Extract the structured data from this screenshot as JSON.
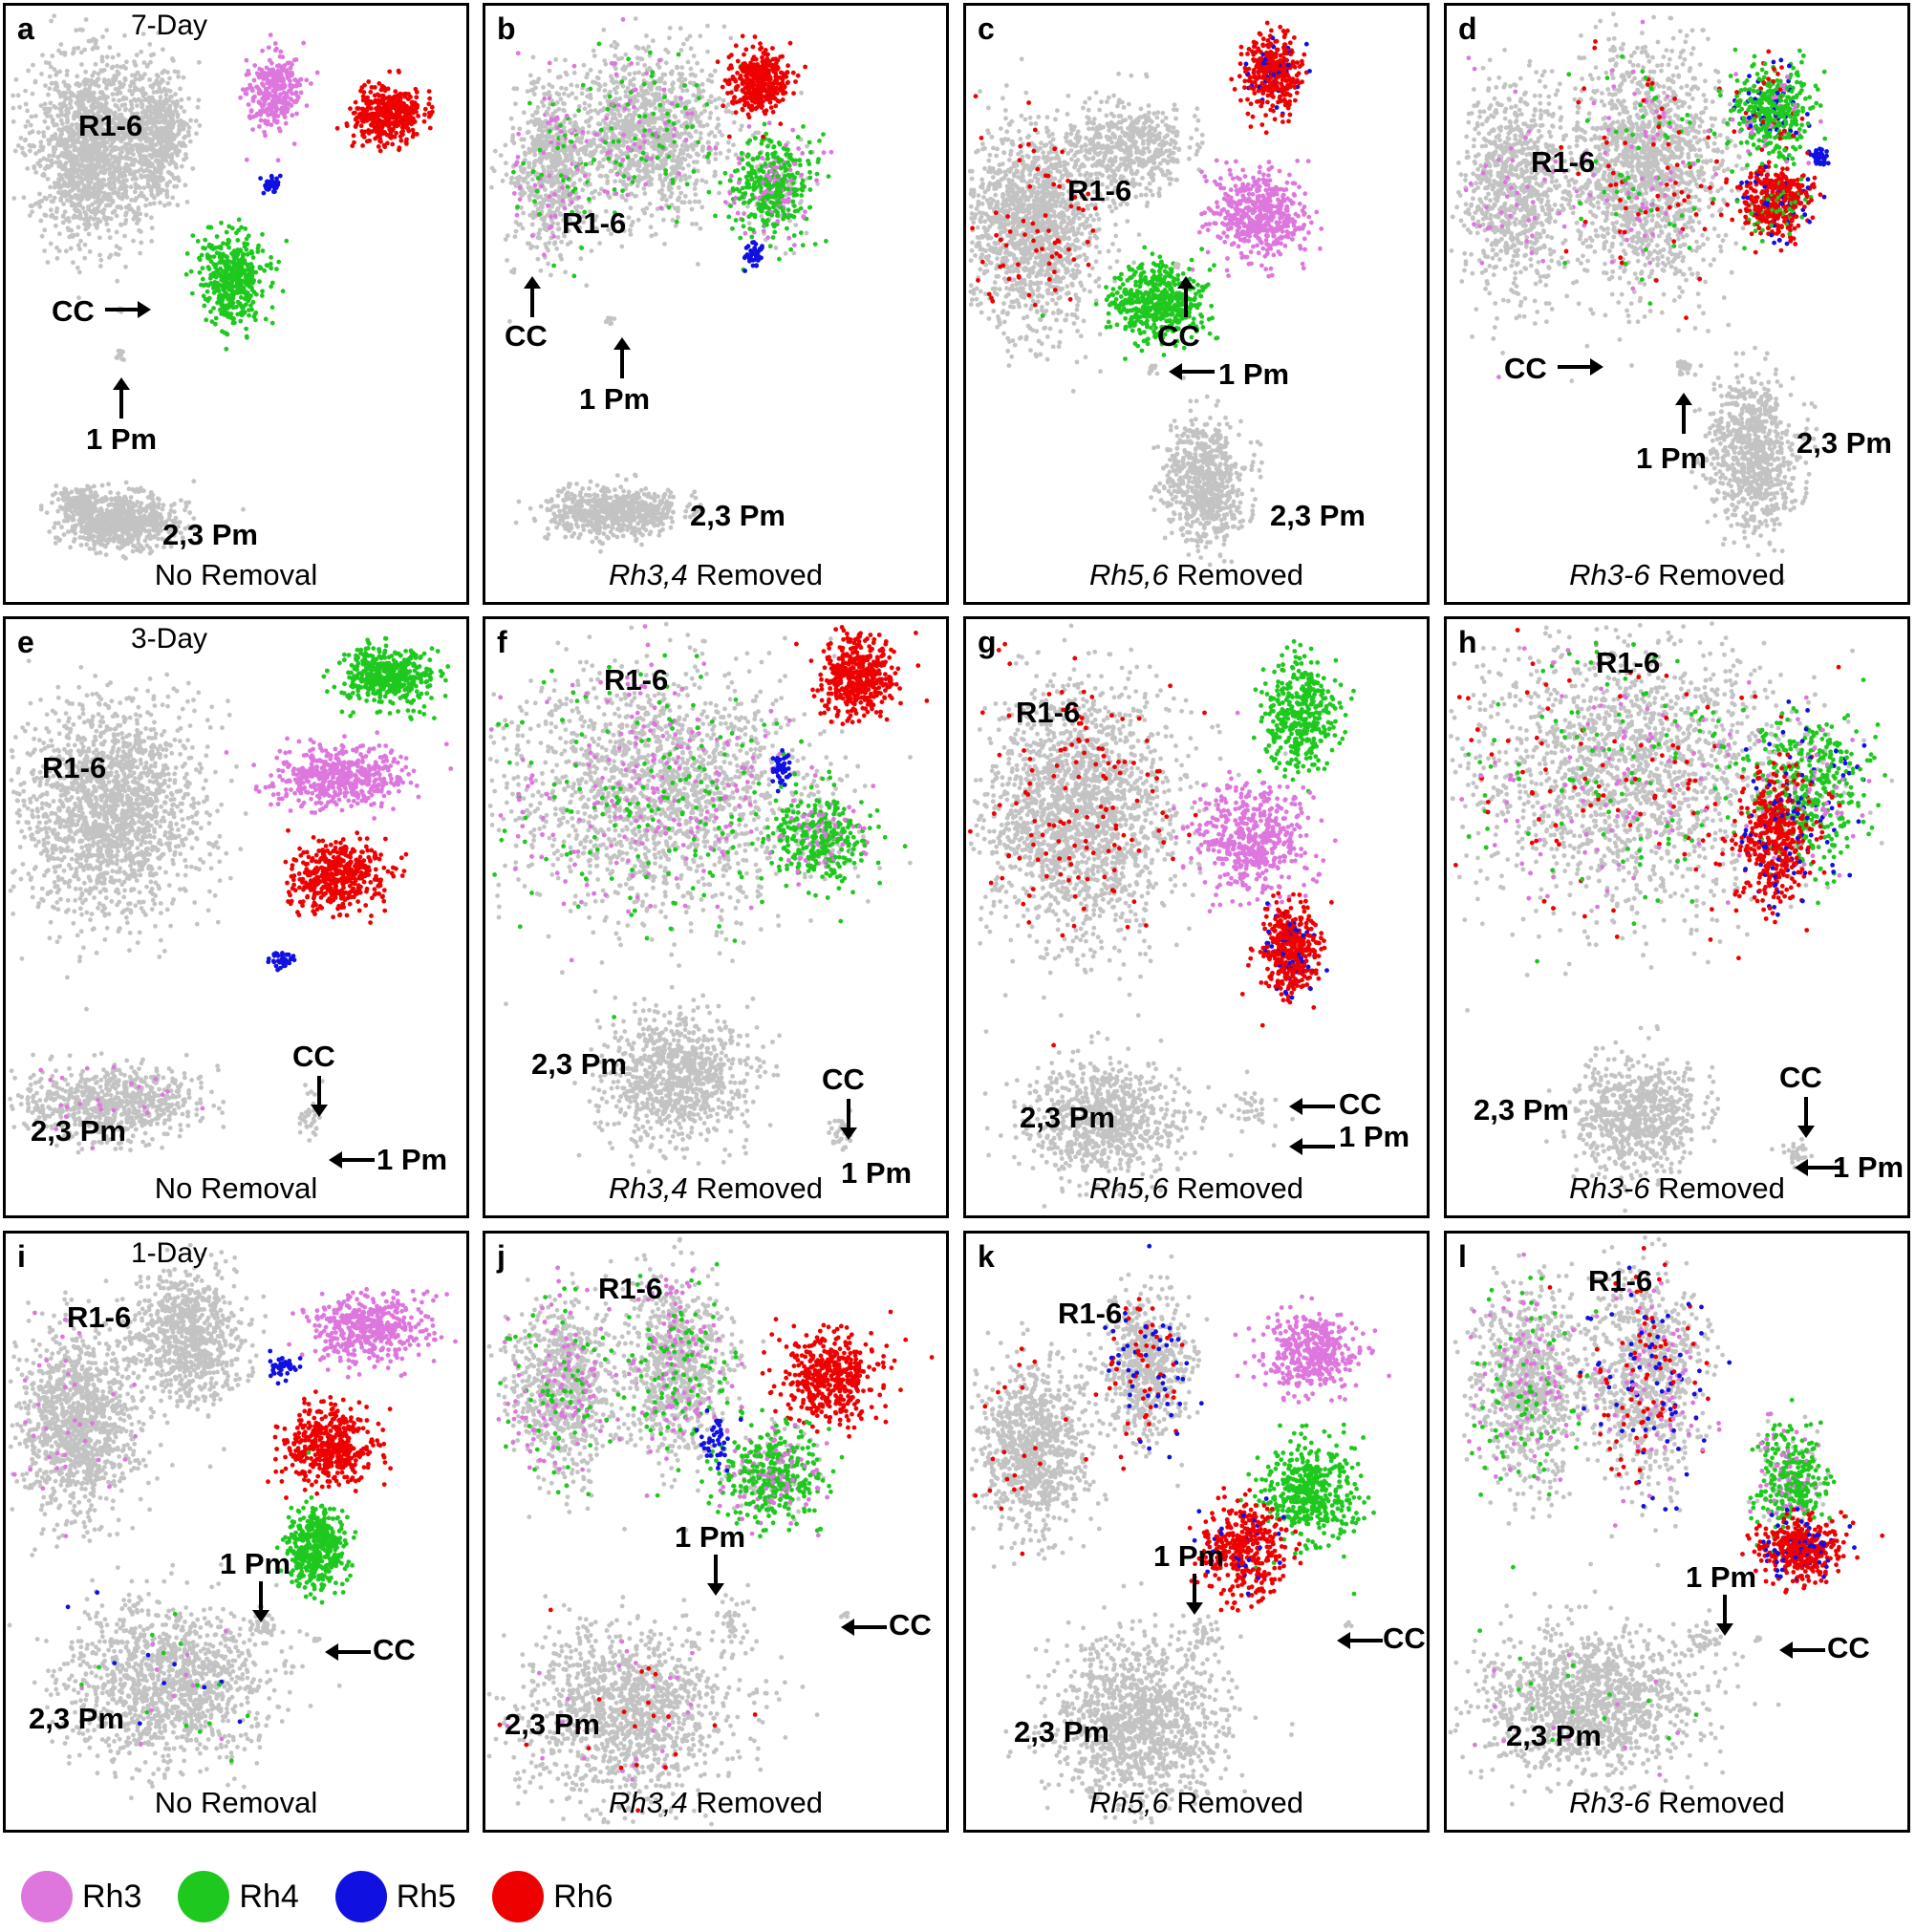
{
  "colors": {
    "Rh3": "#dd77dd",
    "Rh4": "#1fc81f",
    "Rh5": "#1010e0",
    "Rh6": "#ee0000",
    "cells": "#c3c3c3"
  },
  "panels": [
    {
      "letter": "a",
      "timepoint": "7-Day",
      "cond_gene": "",
      "cond_text": "No Removal"
    },
    {
      "letter": "b",
      "timepoint": "",
      "cond_gene": "Rh3,4",
      "cond_text": " Removed"
    },
    {
      "letter": "c",
      "timepoint": "",
      "cond_gene": "Rh5,6",
      "cond_text": " Removed"
    },
    {
      "letter": "d",
      "timepoint": "",
      "cond_gene": "Rh3-6",
      "cond_text": " Removed"
    },
    {
      "letter": "e",
      "timepoint": "3-Day",
      "cond_gene": "",
      "cond_text": "No Removal"
    },
    {
      "letter": "f",
      "timepoint": "",
      "cond_gene": "Rh3,4",
      "cond_text": " Removed"
    },
    {
      "letter": "g",
      "timepoint": "",
      "cond_gene": "Rh5,6",
      "cond_text": " Removed"
    },
    {
      "letter": "h",
      "timepoint": "",
      "cond_gene": "Rh3-6",
      "cond_text": " Removed"
    },
    {
      "letter": "i",
      "timepoint": "1-Day",
      "cond_gene": "",
      "cond_text": "No Removal"
    },
    {
      "letter": "j",
      "timepoint": "",
      "cond_gene": "Rh3,4",
      "cond_text": " Removed"
    },
    {
      "letter": "k",
      "timepoint": "",
      "cond_gene": "Rh5,6",
      "cond_text": " Removed"
    },
    {
      "letter": "l",
      "timepoint": "",
      "cond_gene": "Rh3-6",
      "cond_text": " Removed"
    }
  ],
  "cluster_labels": {
    "r16": "R1-6",
    "cc": "CC",
    "pm1": "1 Pm",
    "pm23": "2,3 Pm"
  },
  "legend": [
    {
      "name": "Rh3",
      "color": "#dd77dd"
    },
    {
      "name": "Rh4",
      "color": "#1fc81f"
    },
    {
      "name": "Rh5",
      "color": "#1010e0"
    },
    {
      "name": "Rh6",
      "color": "#ee0000"
    }
  ]
}
